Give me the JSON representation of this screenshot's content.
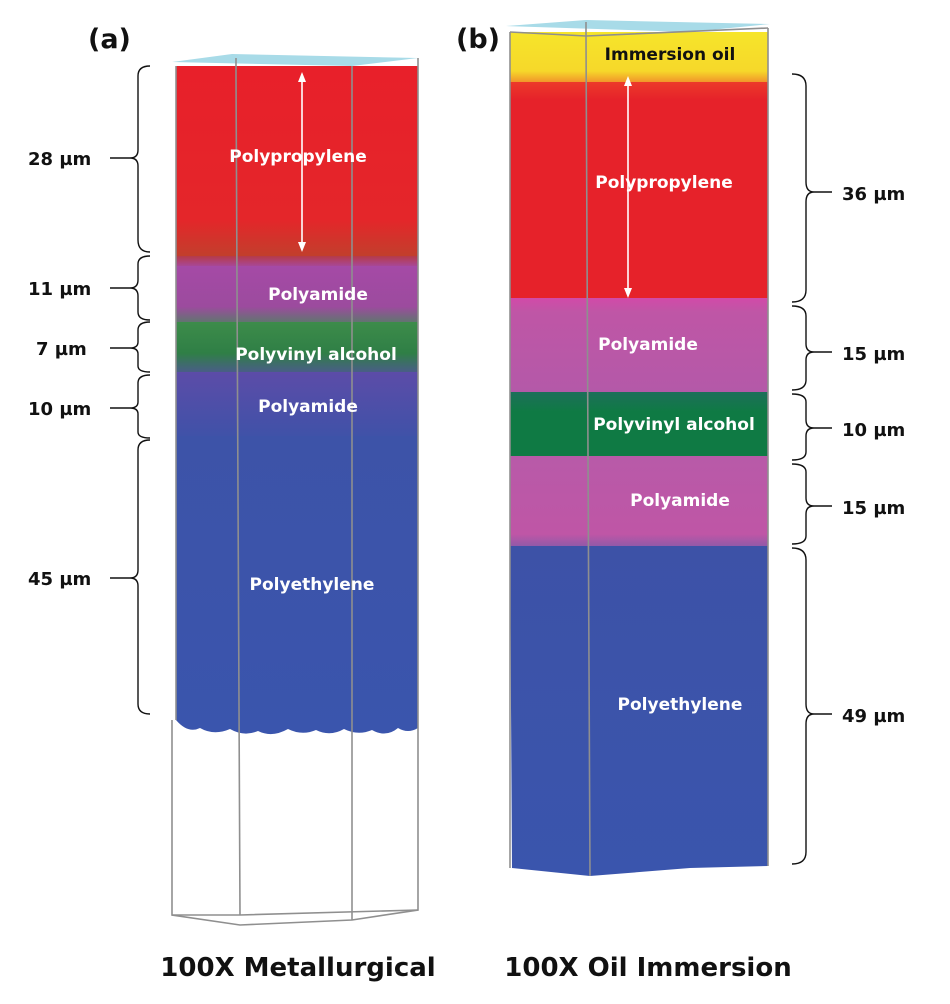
{
  "panel_a": {
    "label": "(a)",
    "caption": "100X Metallurgical",
    "layers": [
      {
        "name": "Polypropylene",
        "thickness": "28 µm",
        "color": "#e62428"
      },
      {
        "name": "Polyamide",
        "thickness": "11 µm",
        "color": "#a54aa6"
      },
      {
        "name": "Polyvinyl alcohol",
        "thickness": "7 µm",
        "color": "#2f7f46"
      },
      {
        "name": "Polyamide",
        "thickness": "10 µm",
        "color": "#5a48aa"
      },
      {
        "name": "Polyethylene",
        "thickness": "45 µm",
        "color": "#3b54a8"
      }
    ]
  },
  "panel_b": {
    "label": "(b)",
    "caption": "100X Oil Immersion",
    "top_layer": {
      "name": "Immersion oil",
      "color": "#f5e02a"
    },
    "layers": [
      {
        "name": "Polypropylene",
        "thickness": "36 µm",
        "color": "#e62428"
      },
      {
        "name": "Polyamide",
        "thickness": "15 µm",
        "color": "#bf56a6"
      },
      {
        "name": "Polyvinyl alcohol",
        "thickness": "10 µm",
        "color": "#0f7a44"
      },
      {
        "name": "Polyamide",
        "thickness": "15 µm",
        "color": "#bf56a6"
      },
      {
        "name": "Polyethylene",
        "thickness": "49 µm",
        "color": "#3b54a8"
      }
    ]
  }
}
